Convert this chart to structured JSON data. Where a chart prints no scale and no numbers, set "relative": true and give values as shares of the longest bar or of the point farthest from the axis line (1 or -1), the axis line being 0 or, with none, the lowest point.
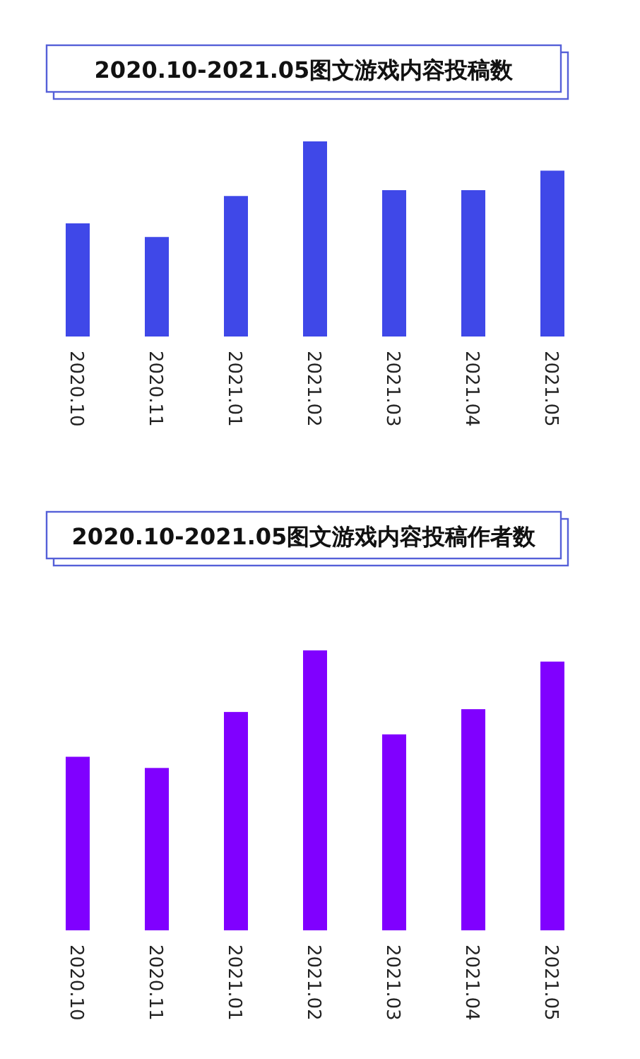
{
  "chart_data": [
    {
      "type": "bar",
      "title": "2020.10-2021.05图文游戏内容投稿数",
      "categories": [
        "2020.10",
        "2020.11",
        "2021.01",
        "2021.02",
        "2021.03",
        "2021.04",
        "2021.05"
      ],
      "values": [
        0.58,
        0.51,
        0.72,
        1,
        0.75,
        0.75,
        0.85
      ],
      "color": "#3f48e8",
      "relative": true
    },
    {
      "type": "bar",
      "title": "2020.10-2021.05图文游戏内容投稿作者数",
      "categories": [
        "2020.10",
        "2020.11",
        "2021.01",
        "2021.02",
        "2021.03",
        "2021.04",
        "2021.05"
      ],
      "values": [
        0.62,
        0.58,
        0.78,
        1,
        0.7,
        0.79,
        0.96
      ],
      "color": "#8000ff",
      "relative": true
    }
  ]
}
